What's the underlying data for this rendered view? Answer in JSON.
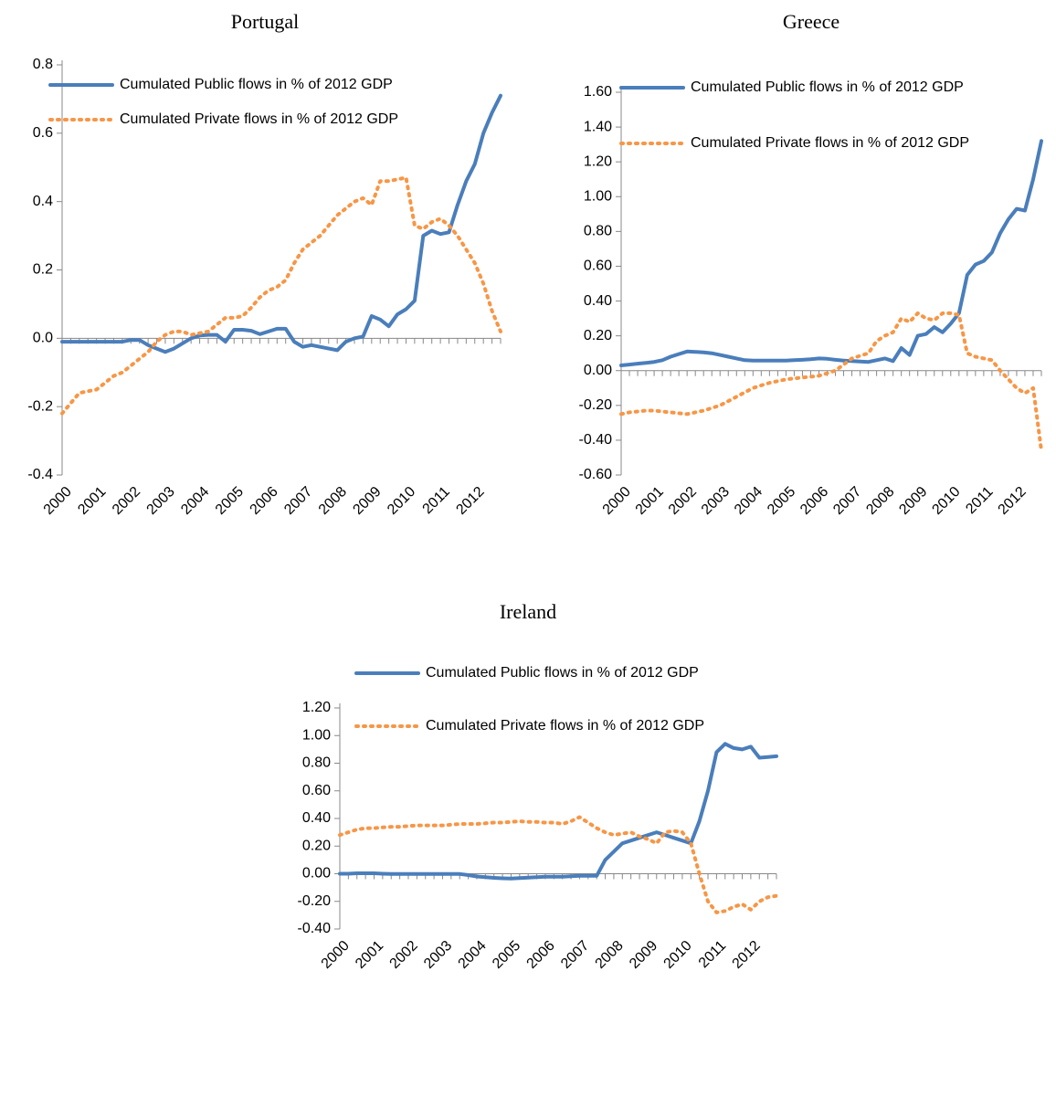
{
  "chart_data": [
    {
      "type": "line",
      "title": "Portugal",
      "categories": [
        "2000",
        null,
        null,
        null,
        "2001",
        null,
        null,
        null,
        "2002",
        null,
        null,
        null,
        "2003",
        null,
        null,
        null,
        "2004",
        null,
        null,
        null,
        "2005",
        null,
        null,
        null,
        "2006",
        null,
        null,
        null,
        "2007",
        null,
        null,
        null,
        "2008",
        null,
        null,
        null,
        "2009",
        null,
        null,
        null,
        "2010",
        null,
        null,
        null,
        "2011",
        null,
        null,
        null,
        "2012",
        null,
        null,
        null
      ],
      "series": [
        {
          "name": "Cumulated Public flows in % of 2012 GDP",
          "color": "#4a7ebb",
          "style": "solid",
          "values": [
            -0.01,
            -0.01,
            -0.01,
            -0.01,
            -0.01,
            -0.01,
            -0.01,
            -0.01,
            -0.005,
            -0.005,
            -0.02,
            -0.03,
            -0.04,
            -0.03,
            -0.015,
            0.0,
            0.008,
            0.01,
            0.01,
            -0.01,
            0.025,
            0.025,
            0.022,
            0.012,
            0.02,
            0.028,
            0.028,
            -0.01,
            -0.025,
            -0.02,
            -0.025,
            -0.03,
            -0.035,
            -0.01,
            0.0,
            0.005,
            0.065,
            0.055,
            0.035,
            0.07,
            0.085,
            0.11,
            0.3,
            0.315,
            0.305,
            0.31,
            0.39,
            0.46,
            0.51,
            0.6,
            0.66,
            0.71
          ]
        },
        {
          "name": "Cumulated Private flows in % of 2012 GDP",
          "color": "#f79646",
          "style": "dotted",
          "values": [
            -0.22,
            -0.19,
            -0.16,
            -0.155,
            -0.15,
            -0.13,
            -0.11,
            -0.1,
            -0.08,
            -0.06,
            -0.04,
            -0.01,
            0.01,
            0.02,
            0.02,
            0.01,
            0.015,
            0.02,
            0.04,
            0.06,
            0.06,
            0.065,
            0.09,
            0.12,
            0.14,
            0.15,
            0.17,
            0.22,
            0.26,
            0.28,
            0.3,
            0.33,
            0.36,
            0.38,
            0.4,
            0.41,
            0.39,
            0.46,
            0.46,
            0.465,
            0.47,
            0.33,
            0.32,
            0.34,
            0.35,
            0.33,
            0.3,
            0.26,
            0.22,
            0.16,
            0.08,
            0.02
          ]
        }
      ],
      "ylim": [
        -0.4,
        0.8
      ],
      "yticks": [
        -0.4,
        -0.2,
        {
          "value": 0,
          "label": "0.0"
        },
        0.2,
        0.4,
        0.6,
        0.8
      ]
    },
    {
      "type": "line",
      "title": "Greece",
      "categories": [
        "2000",
        null,
        null,
        null,
        "2001",
        null,
        null,
        null,
        "2002",
        null,
        null,
        null,
        "2003",
        null,
        null,
        null,
        "2004",
        null,
        null,
        null,
        "2005",
        null,
        null,
        null,
        "2006",
        null,
        null,
        null,
        "2007",
        null,
        null,
        null,
        "2008",
        null,
        null,
        null,
        "2009",
        null,
        null,
        null,
        "2010",
        null,
        null,
        null,
        "2011",
        null,
        null,
        null,
        "2012",
        null,
        null,
        null
      ],
      "series": [
        {
          "name": "Cumulated Public flows in % of 2012 GDP",
          "color": "#4a7ebb",
          "style": "solid",
          "values": [
            0.03,
            0.035,
            0.04,
            0.045,
            0.05,
            0.06,
            0.08,
            0.095,
            0.11,
            0.108,
            0.105,
            0.1,
            0.09,
            0.08,
            0.07,
            0.06,
            0.058,
            0.058,
            0.058,
            0.058,
            0.058,
            0.06,
            0.062,
            0.065,
            0.07,
            0.068,
            0.062,
            0.058,
            0.055,
            0.052,
            0.05,
            0.06,
            0.07,
            0.055,
            0.13,
            0.09,
            0.2,
            0.21,
            0.25,
            0.22,
            0.27,
            0.33,
            0.55,
            0.61,
            0.63,
            0.68,
            0.79,
            0.87,
            0.93,
            0.92,
            1.1,
            1.32
          ]
        },
        {
          "name": "Cumulated Private flows in % of 2012 GDP",
          "color": "#f79646",
          "style": "dotted",
          "values": [
            -0.25,
            -0.24,
            -0.235,
            -0.23,
            -0.23,
            -0.235,
            -0.24,
            -0.245,
            -0.25,
            -0.24,
            -0.23,
            -0.215,
            -0.2,
            -0.175,
            -0.15,
            -0.125,
            -0.1,
            -0.085,
            -0.07,
            -0.06,
            -0.05,
            -0.045,
            -0.04,
            -0.035,
            -0.03,
            -0.015,
            0.0,
            0.035,
            0.07,
            0.085,
            0.1,
            0.17,
            0.2,
            0.22,
            0.3,
            0.28,
            0.33,
            0.3,
            0.29,
            0.33,
            0.33,
            0.32,
            0.1,
            0.08,
            0.07,
            0.06,
            0.0,
            -0.05,
            -0.1,
            -0.13,
            -0.1,
            -0.46
          ]
        }
      ],
      "ylim": [
        -0.6,
        1.6
      ],
      "yticks": [
        {
          "value": -0.6,
          "label": "-0.60"
        },
        {
          "value": -0.4,
          "label": "-0.40"
        },
        {
          "value": -0.2,
          "label": "-0.20"
        },
        {
          "value": 0,
          "label": "0.00"
        },
        {
          "value": 0.2,
          "label": "0.20"
        },
        {
          "value": 0.4,
          "label": "0.40"
        },
        {
          "value": 0.6,
          "label": "0.60"
        },
        {
          "value": 0.8,
          "label": "0.80"
        },
        {
          "value": 1.0,
          "label": "1.00"
        },
        {
          "value": 1.2,
          "label": "1.20"
        },
        {
          "value": 1.4,
          "label": "1.40"
        },
        {
          "value": 1.6,
          "label": "1.60"
        }
      ]
    },
    {
      "type": "line",
      "title": "Ireland",
      "categories": [
        "2000",
        null,
        null,
        null,
        "2001",
        null,
        null,
        null,
        "2002",
        null,
        null,
        null,
        "2003",
        null,
        null,
        null,
        "2004",
        null,
        null,
        null,
        "2005",
        null,
        null,
        null,
        "2006",
        null,
        null,
        null,
        "2007",
        null,
        null,
        null,
        "2008",
        null,
        null,
        null,
        "2009",
        null,
        null,
        null,
        "2010",
        null,
        null,
        null,
        "2011",
        null,
        null,
        null,
        "2012",
        null,
        null,
        null
      ],
      "series": [
        {
          "name": "Cumulated Public flows in % of 2012 GDP",
          "color": "#4a7ebb",
          "style": "solid",
          "values": [
            0.0,
            0.0,
            0.003,
            0.003,
            0.003,
            0.0,
            -0.002,
            -0.002,
            -0.002,
            -0.002,
            -0.002,
            -0.002,
            -0.002,
            -0.002,
            -0.002,
            -0.01,
            -0.02,
            -0.025,
            -0.03,
            -0.033,
            -0.035,
            -0.032,
            -0.028,
            -0.025,
            -0.022,
            -0.022,
            -0.022,
            -0.018,
            -0.015,
            -0.015,
            -0.015,
            0.1,
            0.16,
            0.22,
            0.24,
            0.26,
            0.28,
            0.3,
            0.28,
            0.26,
            0.24,
            0.22,
            0.38,
            0.6,
            0.88,
            0.94,
            0.91,
            0.9,
            0.92,
            0.84,
            0.845,
            0.85
          ]
        },
        {
          "name": "Cumulated Private flows in % of 2012 GDP",
          "color": "#f79646",
          "style": "dotted",
          "values": [
            0.28,
            0.3,
            0.32,
            0.33,
            0.33,
            0.335,
            0.34,
            0.34,
            0.345,
            0.35,
            0.35,
            0.35,
            0.35,
            0.355,
            0.36,
            0.36,
            0.36,
            0.365,
            0.37,
            0.37,
            0.375,
            0.38,
            0.375,
            0.375,
            0.37,
            0.37,
            0.36,
            0.38,
            0.41,
            0.37,
            0.33,
            0.3,
            0.28,
            0.29,
            0.3,
            0.27,
            0.25,
            0.22,
            0.3,
            0.31,
            0.3,
            0.22,
            0.0,
            -0.2,
            -0.28,
            -0.27,
            -0.24,
            -0.22,
            -0.26,
            -0.2,
            -0.17,
            -0.16
          ]
        }
      ],
      "ylim": [
        -0.4,
        1.2
      ],
      "yticks": [
        {
          "value": -0.4,
          "label": "-0.40"
        },
        {
          "value": -0.2,
          "label": "-0.20"
        },
        {
          "value": 0,
          "label": "0.00"
        },
        {
          "value": 0.2,
          "label": "0.20"
        },
        {
          "value": 0.4,
          "label": "0.40"
        },
        {
          "value": 0.6,
          "label": "0.60"
        },
        {
          "value": 0.8,
          "label": "0.80"
        },
        {
          "value": 1.0,
          "label": "1.00"
        },
        {
          "value": 1.2,
          "label": "1.20"
        }
      ]
    }
  ]
}
